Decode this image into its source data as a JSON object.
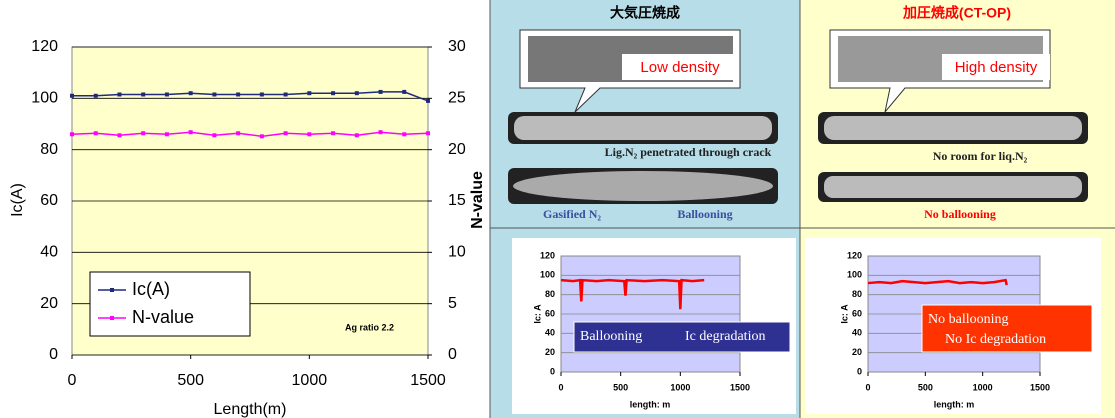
{
  "chart_data": [
    {
      "type": "line",
      "xlabel": "Length(m)",
      "ylabel": "Ic(A)",
      "y2label": "N-value",
      "annotation": "Ag ratio 2.2",
      "x": [
        0,
        100,
        200,
        300,
        400,
        500,
        600,
        700,
        800,
        900,
        1000,
        1100,
        1200,
        1300,
        1400,
        1500
      ],
      "series": [
        {
          "name": "Ic(A)",
          "color": "#1f2a7a",
          "values": [
            101,
            101,
            101.5,
            101.5,
            101.5,
            102,
            101.5,
            101.5,
            101.5,
            101.5,
            102,
            102,
            102,
            102.5,
            102.5,
            99
          ]
        },
        {
          "name": "N-value",
          "color": "#ff00ff",
          "axis": "y2",
          "values": [
            21.5,
            21.6,
            21.4,
            21.6,
            21.5,
            21.7,
            21.4,
            21.6,
            21.3,
            21.6,
            21.5,
            21.6,
            21.4,
            21.7,
            21.5,
            21.6
          ]
        }
      ],
      "xlim": [
        0,
        1500
      ],
      "xticks": [
        0,
        500,
        1000,
        1500
      ],
      "ylim": [
        0,
        120
      ],
      "yticks": [
        0,
        20,
        40,
        60,
        80,
        100,
        120
      ],
      "y2lim": [
        0,
        30
      ],
      "y2ticks": [
        0,
        5,
        10,
        15,
        20,
        25,
        30
      ],
      "grid": true,
      "legend": "lower left"
    },
    {
      "type": "line",
      "xlabel": "length: m",
      "ylabel": "Ic: A",
      "annotation": [
        "Ballooning",
        "Ic degradation"
      ],
      "x": [
        0,
        100,
        160,
        170,
        180,
        300,
        400,
        530,
        540,
        550,
        700,
        850,
        990,
        1000,
        1010,
        1100,
        1200
      ],
      "series": [
        {
          "color": "#ff0000",
          "values": [
            95,
            94,
            95,
            73,
            95,
            94,
            95,
            94,
            79,
            95,
            94,
            95,
            94,
            65,
            95,
            94,
            95
          ]
        }
      ],
      "xlim": [
        0,
        1500
      ],
      "xticks": [
        0,
        500,
        1000,
        1500
      ],
      "ylim": [
        0,
        120
      ],
      "yticks": [
        0,
        20,
        40,
        60,
        80,
        100,
        120
      ],
      "grid": true
    },
    {
      "type": "line",
      "xlabel": "length: m",
      "ylabel": "Ic: A",
      "annotation": [
        "No ballooning",
        "No Ic degradation"
      ],
      "x": [
        0,
        100,
        200,
        300,
        400,
        500,
        600,
        700,
        800,
        900,
        1000,
        1100,
        1150,
        1200,
        1210
      ],
      "series": [
        {
          "color": "#ff0000",
          "values": [
            92,
            93,
            92,
            94,
            93,
            92,
            93,
            94,
            92,
            93,
            92,
            93,
            94,
            95,
            90
          ]
        }
      ],
      "xlim": [
        0,
        1500
      ],
      "xticks": [
        0,
        500,
        1000,
        1500
      ],
      "ylim": [
        0,
        120
      ],
      "yticks": [
        0,
        20,
        40,
        60,
        80,
        100,
        120
      ],
      "grid": true
    }
  ],
  "panel": {
    "headers": [
      "大気圧焼成",
      "加圧焼成(CT-OP)"
    ],
    "left": {
      "callout": "Low density",
      "labels": [
        "Lig.N₂ penetrated through crack",
        "Gasified N₂",
        "Ballooning"
      ]
    },
    "right": {
      "callout": "High density",
      "labels": [
        "No room for liq.N₂",
        "No ballooning"
      ]
    }
  }
}
